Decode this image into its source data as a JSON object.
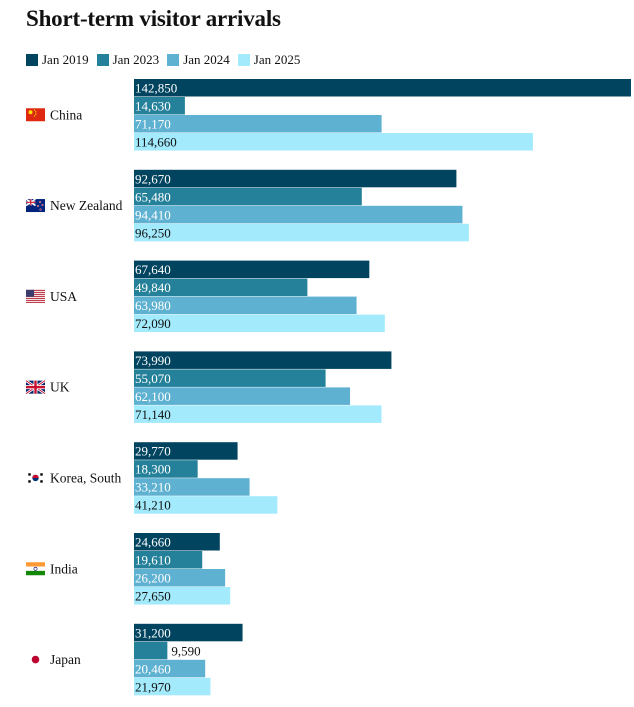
{
  "chart_data": {
    "type": "bar",
    "orientation": "horizontal",
    "title": "Short-term visitor arrivals",
    "legend_position": "top-left",
    "grid": false,
    "categories": [
      "China",
      "New Zealand",
      "USA",
      "UK",
      "Korea, South",
      "India",
      "Japan"
    ],
    "flag_icons": [
      "flag-china-icon",
      "flag-new-zealand-icon",
      "flag-usa-icon",
      "flag-uk-icon",
      "flag-south-korea-icon",
      "flag-india-icon",
      "flag-japan-icon"
    ],
    "xlim": [
      0,
      143000
    ],
    "series": [
      {
        "name": "Jan 2019",
        "color": "#00445f",
        "values": [
          142850,
          92670,
          67640,
          73990,
          29770,
          24660,
          31200
        ],
        "labels": [
          "142,850",
          "92,670",
          "67,640",
          "73,990",
          "29,770",
          "24,660",
          "31,200"
        ]
      },
      {
        "name": "Jan 2023",
        "color": "#25819a",
        "values": [
          14630,
          65480,
          49840,
          55070,
          18300,
          19610,
          9590
        ],
        "labels": [
          "14,630",
          "65,480",
          "49,840",
          "55,070",
          "18,300",
          "19,610",
          "9,590"
        ]
      },
      {
        "name": "Jan 2024",
        "color": "#5eb1d1",
        "values": [
          71170,
          94410,
          63980,
          62100,
          33210,
          26200,
          20460
        ],
        "labels": [
          "71,170",
          "94,410",
          "63,980",
          "62,100",
          "33,210",
          "26,200",
          "20,460"
        ]
      },
      {
        "name": "Jan 2025",
        "color": "#a2eafc",
        "values": [
          114660,
          96250,
          72090,
          71140,
          41210,
          27650,
          21970
        ],
        "labels": [
          "114,660",
          "96,250",
          "72,090",
          "71,140",
          "41,210",
          "27,650",
          "21,970"
        ]
      }
    ]
  }
}
